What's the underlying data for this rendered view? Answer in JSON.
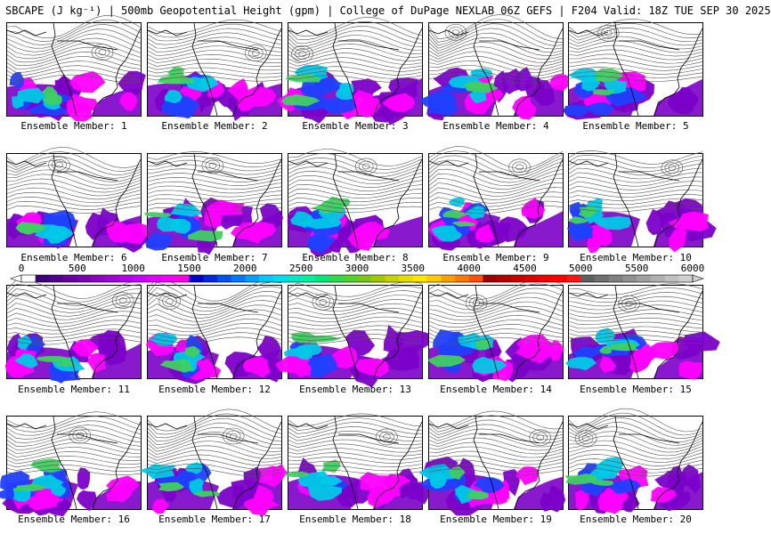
{
  "header": {
    "title": "SBCAPE (J kg⁻¹) | 500mb Geopotential Height (gpm) | College of DuPage NEXLAB 06Z GEFS | F204 Valid: 18Z TUE SEP 30 2025"
  },
  "colors": {
    "background": "#ffffff",
    "contour": "#555555",
    "coast": "#000000",
    "cape_low": "#7b00c8",
    "cape_mid": "#ff00ff",
    "cape_blue": "#2040ff",
    "cape_cyan": "#00c8e6",
    "cape_green": "#40d060"
  },
  "members": [
    {
      "label": "Ensemble Member: 1"
    },
    {
      "label": "Ensemble Member: 2"
    },
    {
      "label": "Ensemble Member: 3"
    },
    {
      "label": "Ensemble Member: 4"
    },
    {
      "label": "Ensemble Member: 5"
    },
    {
      "label": "Ensemble Member: 6"
    },
    {
      "label": "Ensemble Member: 7"
    },
    {
      "label": "Ensemble Member: 8"
    },
    {
      "label": "Ensemble Member: 9"
    },
    {
      "label": "Ensemble Member: 10"
    },
    {
      "label": "Ensemble Member: 11"
    },
    {
      "label": "Ensemble Member: 12"
    },
    {
      "label": "Ensemble Member: 13"
    },
    {
      "label": "Ensemble Member: 14"
    },
    {
      "label": "Ensemble Member: 15"
    },
    {
      "label": "Ensemble Member: 16"
    },
    {
      "label": "Ensemble Member: 17"
    },
    {
      "label": "Ensemble Member: 18"
    },
    {
      "label": "Ensemble Member: 19"
    },
    {
      "label": "Ensemble Member: 20"
    }
  ],
  "colorbar": {
    "ticks": [
      "0",
      "500",
      "1000",
      "1500",
      "2000",
      "2500",
      "3000",
      "3500",
      "4000",
      "4500",
      "5000",
      "5500",
      "6000"
    ],
    "colors": [
      "#ffffff",
      "#3c0078",
      "#50008c",
      "#6400a0",
      "#7800b4",
      "#8c00c8",
      "#a000dc",
      "#b400f0",
      "#c800ff",
      "#dc00ff",
      "#f000ff",
      "#ff00e6",
      "#0000c8",
      "#0028dc",
      "#0050f0",
      "#0078ff",
      "#00a0ff",
      "#00c8ff",
      "#00dcf0",
      "#00e6c8",
      "#00f0a0",
      "#00e678",
      "#28dc50",
      "#50d228",
      "#78c814",
      "#a0c800",
      "#c8d200",
      "#e6dc00",
      "#ffe600",
      "#ffc800",
      "#ffa000",
      "#ff7800",
      "#ff5000",
      "#a00000",
      "#b40000",
      "#c80000",
      "#dc0000",
      "#f00000",
      "#ff0000",
      "#ff1414",
      "#606060",
      "#707070",
      "#808080",
      "#909090",
      "#a0a0a0",
      "#b0b0b0",
      "#c0c0c0",
      "#d0d0d0"
    ]
  }
}
